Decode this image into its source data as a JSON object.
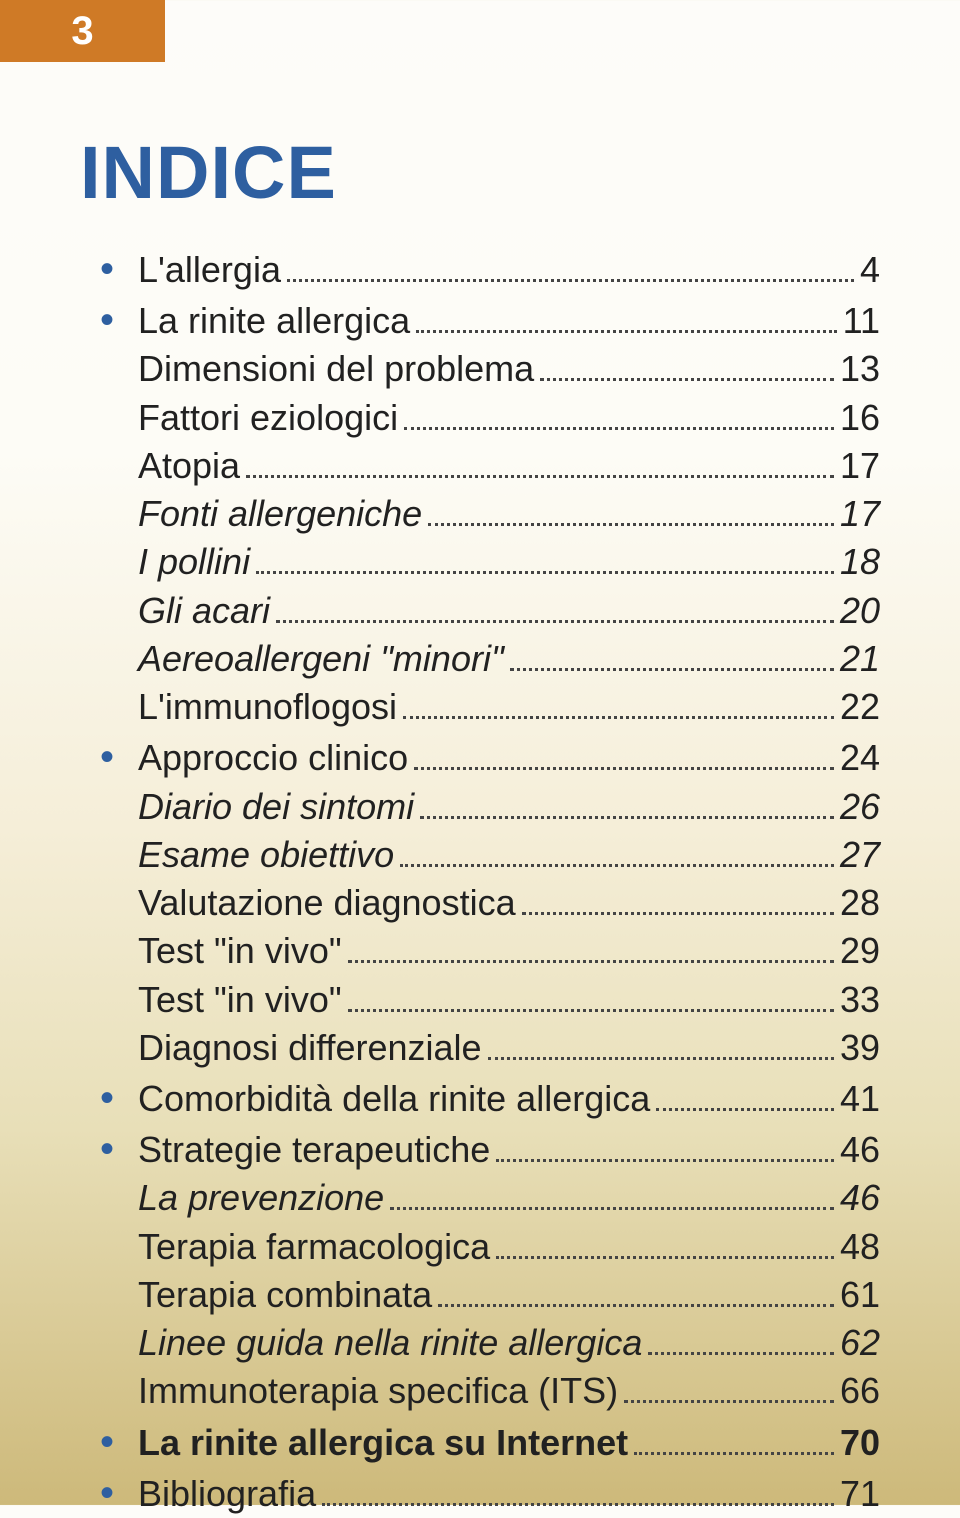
{
  "page_number": "3",
  "title": "INDICE",
  "colors": {
    "tab_bg": "#cf7a26",
    "tab_text": "#ffffff",
    "title_color": "#2e5fa0",
    "bullet_color": "#2e5fa0",
    "text_color": "#212121",
    "bg_gradient_top": "#fdfcf9",
    "bg_gradient_bottom": "#cdb97a"
  },
  "typography": {
    "title_fontsize_pt": 56,
    "row_fontsize_pt": 27,
    "title_family": "Arial Black",
    "body_family": "Optima"
  },
  "entries": [
    {
      "label": "L'allergia",
      "page": "4",
      "level": 1,
      "bullet": true,
      "style": "normal"
    },
    {
      "label": "La rinite allergica",
      "page": "11",
      "level": 1,
      "bullet": true,
      "style": "normal"
    },
    {
      "label": "Dimensioni del problema",
      "page": "13",
      "level": 2,
      "bullet": false,
      "style": "normal"
    },
    {
      "label": "Fattori eziologici",
      "page": "16",
      "level": 2,
      "bullet": false,
      "style": "normal"
    },
    {
      "label": "Atopia",
      "page": "17",
      "level": 2,
      "bullet": false,
      "style": "normal"
    },
    {
      "label": "Fonti allergeniche",
      "page": "17",
      "level": 2,
      "bullet": false,
      "style": "italic"
    },
    {
      "label": "I pollini",
      "page": "18",
      "level": 2,
      "bullet": false,
      "style": "italic"
    },
    {
      "label": "Gli acari",
      "page": "20",
      "level": 2,
      "bullet": false,
      "style": "italic"
    },
    {
      "label": "Aereoallergeni \"minori\"",
      "page": "21",
      "level": 2,
      "bullet": false,
      "style": "italic"
    },
    {
      "label": "L'immunoflogosi",
      "page": "22",
      "level": 2,
      "bullet": false,
      "style": "normal"
    },
    {
      "label": "Approccio clinico",
      "page": "24",
      "level": 1,
      "bullet": true,
      "style": "normal"
    },
    {
      "label": "Diario dei sintomi",
      "page": "26",
      "level": 2,
      "bullet": false,
      "style": "italic"
    },
    {
      "label": "Esame obiettivo",
      "page": "27",
      "level": 2,
      "bullet": false,
      "style": "italic"
    },
    {
      "label": "Valutazione diagnostica",
      "page": "28",
      "level": 2,
      "bullet": false,
      "style": "normal"
    },
    {
      "label": "Test \"in vivo\"",
      "page": "29",
      "level": 2,
      "bullet": false,
      "style": "normal"
    },
    {
      "label": "Test \"in vivo\"",
      "page": "33",
      "level": 2,
      "bullet": false,
      "style": "normal"
    },
    {
      "label": "Diagnosi differenziale",
      "page": "39",
      "level": 2,
      "bullet": false,
      "style": "normal"
    },
    {
      "label": "Comorbidità della rinite allergica",
      "page": "41",
      "level": 1,
      "bullet": true,
      "style": "normal"
    },
    {
      "label": "Strategie terapeutiche",
      "page": "46",
      "level": 1,
      "bullet": true,
      "style": "normal"
    },
    {
      "label": "La prevenzione",
      "page": "46",
      "level": 2,
      "bullet": false,
      "style": "italic"
    },
    {
      "label": "Terapia farmacologica",
      "page": "48",
      "level": 2,
      "bullet": false,
      "style": "normal"
    },
    {
      "label": "Terapia combinata",
      "page": "61",
      "level": 2,
      "bullet": false,
      "style": "normal"
    },
    {
      "label": "Linee guida nella rinite allergica",
      "page": "62",
      "level": 2,
      "bullet": false,
      "style": "italic"
    },
    {
      "label": "Immunoterapia specifica (ITS)",
      "page": "66",
      "level": 2,
      "bullet": false,
      "style": "normal"
    },
    {
      "label": "La rinite allergica su Internet",
      "page": "70",
      "level": 1,
      "bullet": true,
      "style": "bold"
    },
    {
      "label": "Bibliografia",
      "page": "71",
      "level": 1,
      "bullet": true,
      "style": "normal"
    }
  ]
}
